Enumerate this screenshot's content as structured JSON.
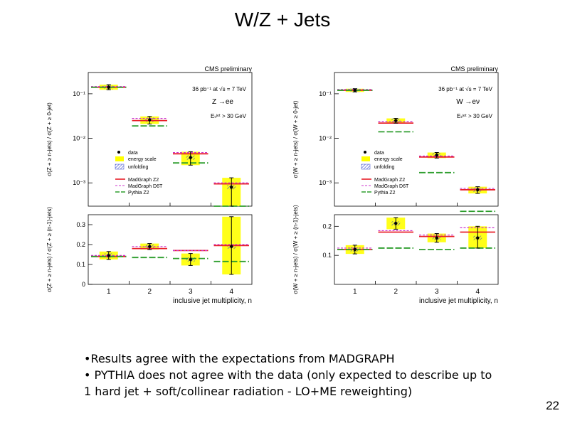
{
  "slide": {
    "title": "W/Z + Jets",
    "page_number": "22",
    "bullets": [
      "•Results agree with the expectations from MADGRAPH",
      "• PYTHIA does not agree with the data (only expected to describe up to",
      "1 hard jet + soft/collinear radiation - LO+ME reweighting)"
    ]
  },
  "colors": {
    "data": "#000000",
    "energy_scale": "#ffff00",
    "unfolding": "#3344cc",
    "madgraph_z2": "#e8202a",
    "madgraph_d6t": "#cc33cc",
    "pythia_z2": "#2e9e2e"
  },
  "chart_data": [
    {
      "type": "scatter",
      "title": "CMS preliminary",
      "lumi": "36 pb⁻¹ at √s = 7 TeV",
      "process": "Z →ee",
      "cut": "Eₜʲᵉᵗ > 30 GeV",
      "xlabel": "inclusive jet multiplicity, n",
      "categories": [
        "1",
        "2",
        "3",
        "4"
      ],
      "legend": [
        "data",
        "energy scale",
        "unfolding",
        "MadGraph Z2",
        "MadGraph D6T",
        "Pythia Z2"
      ],
      "top": {
        "ylabel": "σ(Z + ≥ n-jets) / σ(Z + ≥ 0-jet)",
        "scale": "log",
        "ylim": [
          0.0003,
          0.3
        ],
        "yticks": [
          {
            "value": 0.1,
            "label": "10⁻¹"
          },
          {
            "value": 0.01,
            "label": "10⁻²"
          },
          {
            "value": 0.001,
            "label": "10⁻³"
          }
        ],
        "data": [
          0.14,
          0.026,
          0.0037,
          0.0008
        ],
        "err_low": [
          0.123,
          0.021,
          0.0025,
          0.0003
        ],
        "err_high": [
          0.16,
          0.031,
          0.005,
          0.0013
        ],
        "series": [
          {
            "name": "MadGraph Z2",
            "values": [
              0.14,
              0.025,
              0.0045,
              0.00095
            ]
          },
          {
            "name": "MadGraph D6T",
            "values": [
              0.145,
              0.028,
              0.0048,
              0.001
            ]
          },
          {
            "name": "Pythia Z2",
            "values": [
              0.14,
              0.019,
              0.0028,
              0.0003
            ]
          }
        ]
      },
      "bottom": {
        "ylabel": "σ(Z + ≥ n-jets) / σ(Z + ≥ (n-1)-jets)",
        "scale": "linear",
        "ylim": [
          0,
          0.35
        ],
        "yticks": [
          {
            "value": 0,
            "label": "0"
          },
          {
            "value": 0.1,
            "label": "0.1"
          },
          {
            "value": 0.2,
            "label": "0.2"
          },
          {
            "value": 0.3,
            "label": "0.3"
          }
        ],
        "data": [
          0.145,
          0.19,
          0.125,
          0.19
        ],
        "err_low": [
          0.125,
          0.175,
          0.095,
          0.05
        ],
        "err_high": [
          0.165,
          0.205,
          0.155,
          0.34
        ],
        "series": [
          {
            "name": "MadGraph Z2",
            "values": [
              0.14,
              0.18,
              0.17,
              0.195
            ]
          },
          {
            "name": "MadGraph D6T",
            "values": [
              0.145,
              0.19,
              0.17,
              0.2
            ]
          },
          {
            "name": "Pythia Z2",
            "values": [
              0.14,
              0.135,
              0.13,
              0.115
            ]
          }
        ]
      }
    },
    {
      "type": "scatter",
      "title": "CMS preliminary",
      "lumi": "36 pb⁻¹ at √s = 7 TeV",
      "process": "W →eν",
      "cut": "Eₜʲᵉᵗ > 30 GeV",
      "xlabel": "inclusive jet multiplicity, n",
      "categories": [
        "1",
        "2",
        "3",
        "4"
      ],
      "legend": [
        "data",
        "energy scale",
        "unfolding",
        "MadGraph Z2",
        "MadGraph D6T",
        "Pythia Z2"
      ],
      "top": {
        "ylabel": "σ(W + ≥ n-jets) / σ(W + ≥ 0-jet)",
        "scale": "log",
        "ylim": [
          0.0003,
          0.3
        ],
        "yticks": [
          {
            "value": 0.1,
            "label": "10⁻¹"
          },
          {
            "value": 0.01,
            "label": "10⁻²"
          },
          {
            "value": 0.001,
            "label": "10⁻³"
          }
        ],
        "data": [
          0.12,
          0.025,
          0.0042,
          0.0007
        ],
        "err_low": [
          0.11,
          0.022,
          0.0036,
          0.00058
        ],
        "err_high": [
          0.13,
          0.028,
          0.0048,
          0.00082
        ],
        "series": [
          {
            "name": "MadGraph Z2",
            "values": [
              0.12,
              0.022,
              0.0038,
              0.0007
            ]
          },
          {
            "name": "MadGraph D6T",
            "values": [
              0.125,
              0.024,
              0.004,
              0.00075
            ]
          },
          {
            "name": "Pythia Z2",
            "values": [
              0.12,
              0.014,
              0.0017,
              0.00023
            ]
          }
        ]
      },
      "bottom": {
        "ylabel": "σ(W + ≥ n-jets) / σ(W + ≥ (n-1)-jets)",
        "scale": "linear",
        "ylim": [
          0,
          0.24
        ],
        "yticks": [
          {
            "value": 0.1,
            "label": "0.1"
          },
          {
            "value": 0.2,
            "label": "0.2"
          }
        ],
        "data": [
          0.12,
          0.21,
          0.16,
          0.16
        ],
        "err_low": [
          0.105,
          0.19,
          0.145,
          0.125
        ],
        "err_high": [
          0.135,
          0.23,
          0.175,
          0.2
        ],
        "series": [
          {
            "name": "MadGraph Z2",
            "values": [
              0.12,
              0.18,
              0.165,
              0.18
            ]
          },
          {
            "name": "MadGraph D6T",
            "values": [
              0.125,
              0.185,
              0.17,
              0.195
            ]
          },
          {
            "name": "Pythia Z2",
            "values": [
              0.12,
              0.125,
              0.12,
              0.125
            ]
          }
        ]
      }
    }
  ]
}
